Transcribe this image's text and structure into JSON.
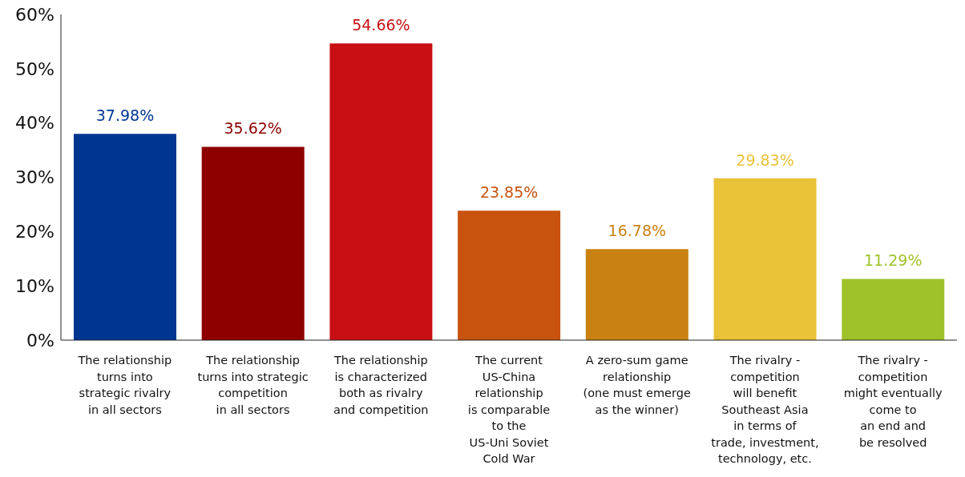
{
  "chart_data": {
    "type": "bar",
    "categories": [
      "The relationship\nturns into\nstrategic rivalry\nin all sectors",
      "The relationship\nturns into strategic\ncompetition\nin all sectors",
      "The relationship\nis characterized\nboth as rivalry\nand competition",
      "The current\nUS-China\nrelationship\nis comparable\nto the\nUS-Uni Soviet\nCold War",
      "A zero-sum game\nrelationship\n(one must emerge\nas the winner)",
      "The rivalry -\ncompetition\nwill benefit\nSoutheast Asia\nin terms of\ntrade, investment,\ntechnology, etc.",
      "The rivalry -\ncompetition\nmight eventually\ncome to\nan end and\nbe resolved"
    ],
    "values": [
      37.98,
      35.62,
      54.66,
      23.85,
      16.78,
      29.83,
      11.29
    ],
    "colors": [
      "#003591",
      "#8e0000",
      "#c81014",
      "#c8530f",
      "#c98112",
      "#eac238",
      "#9fc22a"
    ],
    "value_labels": [
      "37.98%",
      "35.62%",
      "54.66%",
      "23.85%",
      "16.78%",
      "29.83%",
      "11.29%"
    ],
    "ylim": [
      0,
      60
    ],
    "yticks": [
      {
        "value": 0,
        "label": "0%"
      },
      {
        "value": 10,
        "label": "10%"
      },
      {
        "value": 20,
        "label": "20%"
      },
      {
        "value": 30,
        "label": "30%"
      },
      {
        "value": 40,
        "label": "40%"
      },
      {
        "value": 50,
        "label": "50%"
      },
      {
        "value": 60,
        "label": "60%"
      }
    ],
    "grid": false,
    "legend": false
  }
}
